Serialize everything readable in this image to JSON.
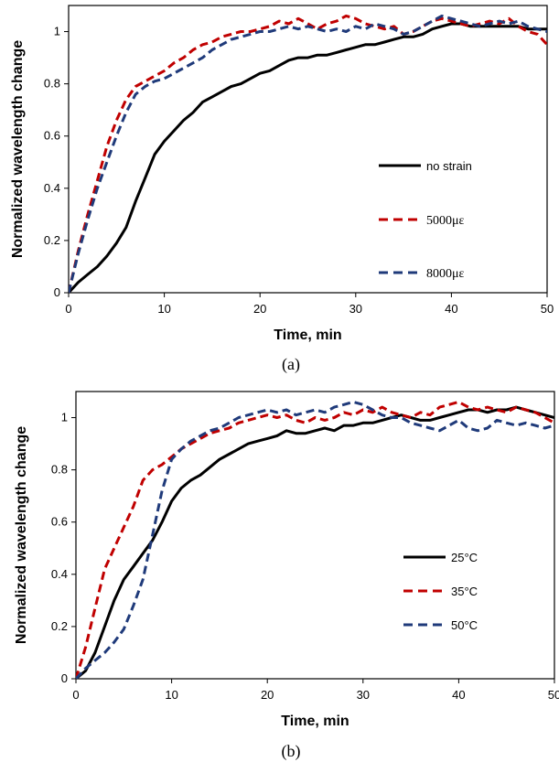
{
  "chart_data": [
    {
      "type": "line",
      "caption": "(a)",
      "xlabel": "Time, min",
      "ylabel": "Normalized wavelength change",
      "xlim": [
        0,
        50
      ],
      "ylim": [
        0,
        1.1
      ],
      "x_ticks": [
        "0",
        "10",
        "20",
        "30",
        "40",
        "50"
      ],
      "y_ticks": [
        "0",
        "0.2",
        "0.4",
        "0.6",
        "0.8",
        "1"
      ],
      "grid": false,
      "legend_position": "center-right",
      "series": [
        {
          "name": "no strain",
          "color": "#000000",
          "dash": "solid",
          "x": [
            0,
            1,
            2,
            3,
            4,
            5,
            6,
            7,
            8,
            9,
            10,
            11,
            12,
            13,
            14,
            15,
            16,
            17,
            18,
            19,
            20,
            21,
            22,
            23,
            24,
            25,
            26,
            27,
            28,
            29,
            30,
            31,
            32,
            33,
            34,
            35,
            36,
            37,
            38,
            39,
            40,
            41,
            42,
            43,
            44,
            45,
            46,
            47,
            48,
            49,
            50
          ],
          "y": [
            0,
            0.04,
            0.07,
            0.1,
            0.14,
            0.19,
            0.25,
            0.35,
            0.44,
            0.53,
            0.58,
            0.62,
            0.66,
            0.69,
            0.73,
            0.75,
            0.77,
            0.79,
            0.8,
            0.82,
            0.84,
            0.85,
            0.87,
            0.89,
            0.9,
            0.9,
            0.91,
            0.91,
            0.92,
            0.93,
            0.94,
            0.95,
            0.95,
            0.96,
            0.97,
            0.98,
            0.98,
            0.99,
            1.01,
            1.02,
            1.03,
            1.03,
            1.02,
            1.02,
            1.02,
            1.02,
            1.02,
            1.02,
            1.01,
            1.01,
            1.01
          ]
        },
        {
          "name": "5000με",
          "color": "#C00000",
          "dash": "dashed",
          "x": [
            0,
            1,
            2,
            3,
            4,
            5,
            6,
            7,
            8,
            9,
            10,
            11,
            12,
            13,
            14,
            15,
            16,
            17,
            18,
            19,
            20,
            21,
            22,
            23,
            24,
            25,
            26,
            27,
            28,
            29,
            30,
            31,
            32,
            33,
            34,
            35,
            36,
            37,
            38,
            39,
            40,
            41,
            42,
            43,
            44,
            45,
            46,
            47,
            48,
            49,
            50
          ],
          "y": [
            0,
            0.16,
            0.3,
            0.43,
            0.56,
            0.66,
            0.74,
            0.79,
            0.81,
            0.83,
            0.85,
            0.88,
            0.9,
            0.93,
            0.95,
            0.96,
            0.98,
            0.99,
            1.0,
            1.0,
            1.01,
            1.02,
            1.04,
            1.03,
            1.05,
            1.03,
            1.01,
            1.03,
            1.04,
            1.06,
            1.05,
            1.03,
            1.02,
            1.01,
            1.02,
            0.99,
            1.0,
            1.02,
            1.04,
            1.05,
            1.04,
            1.03,
            1.02,
            1.03,
            1.04,
            1.03,
            1.05,
            1.02,
            1.0,
            0.99,
            0.95
          ]
        },
        {
          "name": "8000με",
          "color": "#1F3A7A",
          "dash": "dashed",
          "x": [
            0,
            1,
            2,
            3,
            4,
            5,
            6,
            7,
            8,
            9,
            10,
            11,
            12,
            13,
            14,
            15,
            16,
            17,
            18,
            19,
            20,
            21,
            22,
            23,
            24,
            25,
            26,
            27,
            28,
            29,
            30,
            31,
            32,
            33,
            34,
            35,
            36,
            37,
            38,
            39,
            40,
            41,
            42,
            43,
            44,
            45,
            46,
            47,
            48,
            49,
            50
          ],
          "y": [
            0,
            0.15,
            0.28,
            0.4,
            0.5,
            0.6,
            0.69,
            0.76,
            0.79,
            0.81,
            0.82,
            0.84,
            0.86,
            0.88,
            0.9,
            0.93,
            0.95,
            0.97,
            0.98,
            0.99,
            1.0,
            1.0,
            1.01,
            1.02,
            1.01,
            1.02,
            1.01,
            1.0,
            1.01,
            1.0,
            1.02,
            1.01,
            1.03,
            1.02,
            1.01,
            0.99,
            1.0,
            1.02,
            1.04,
            1.06,
            1.05,
            1.04,
            1.03,
            1.02,
            1.03,
            1.04,
            1.03,
            1.04,
            1.02,
            1.01,
            1.0
          ]
        }
      ]
    },
    {
      "type": "line",
      "caption": "(b)",
      "xlabel": "Time, min",
      "ylabel": "Normalized wavelength change",
      "xlim": [
        0,
        50
      ],
      "ylim": [
        0,
        1.1
      ],
      "x_ticks": [
        "0",
        "10",
        "20",
        "30",
        "40",
        "50"
      ],
      "y_ticks": [
        "0",
        "0.2",
        "0.4",
        "0.6",
        "0.8",
        "1"
      ],
      "grid": false,
      "legend_position": "center-right",
      "series": [
        {
          "name": "25°C",
          "color": "#000000",
          "dash": "solid",
          "x": [
            0,
            1,
            2,
            3,
            4,
            5,
            6,
            7,
            8,
            9,
            10,
            11,
            12,
            13,
            14,
            15,
            16,
            17,
            18,
            19,
            20,
            21,
            22,
            23,
            24,
            25,
            26,
            27,
            28,
            29,
            30,
            31,
            32,
            33,
            34,
            35,
            36,
            37,
            38,
            39,
            40,
            41,
            42,
            43,
            44,
            45,
            46,
            47,
            48,
            49,
            50
          ],
          "y": [
            0,
            0.03,
            0.1,
            0.2,
            0.3,
            0.38,
            0.43,
            0.48,
            0.53,
            0.6,
            0.68,
            0.73,
            0.76,
            0.78,
            0.81,
            0.84,
            0.86,
            0.88,
            0.9,
            0.91,
            0.92,
            0.93,
            0.95,
            0.94,
            0.94,
            0.95,
            0.96,
            0.95,
            0.97,
            0.97,
            0.98,
            0.98,
            0.99,
            1.0,
            1.01,
            1.0,
            0.99,
            0.99,
            1.0,
            1.01,
            1.02,
            1.03,
            1.03,
            1.02,
            1.03,
            1.03,
            1.04,
            1.03,
            1.02,
            1.01,
            1.0
          ]
        },
        {
          "name": "35°C",
          "color": "#C00000",
          "dash": "dashed",
          "x": [
            0,
            1,
            2,
            3,
            4,
            5,
            6,
            7,
            8,
            9,
            10,
            11,
            12,
            13,
            14,
            15,
            16,
            17,
            18,
            19,
            20,
            21,
            22,
            23,
            24,
            25,
            26,
            27,
            28,
            29,
            30,
            31,
            32,
            33,
            34,
            35,
            36,
            37,
            38,
            39,
            40,
            41,
            42,
            43,
            44,
            45,
            46,
            47,
            48,
            49,
            50
          ],
          "y": [
            0,
            0.12,
            0.27,
            0.42,
            0.5,
            0.58,
            0.66,
            0.76,
            0.8,
            0.82,
            0.85,
            0.88,
            0.9,
            0.92,
            0.94,
            0.95,
            0.96,
            0.98,
            0.99,
            1.0,
            1.01,
            1.0,
            1.01,
            0.99,
            0.98,
            1.0,
            0.99,
            1.0,
            1.02,
            1.01,
            1.03,
            1.02,
            1.04,
            1.02,
            1.01,
            1.0,
            1.02,
            1.01,
            1.04,
            1.05,
            1.06,
            1.04,
            1.03,
            1.04,
            1.03,
            1.02,
            1.04,
            1.03,
            1.02,
            1.0,
            0.98
          ]
        },
        {
          "name": "50°C",
          "color": "#1F3A7A",
          "dash": "dashed",
          "x": [
            0,
            1,
            2,
            3,
            4,
            5,
            6,
            7,
            8,
            9,
            10,
            11,
            12,
            13,
            14,
            15,
            16,
            17,
            18,
            19,
            20,
            21,
            22,
            23,
            24,
            25,
            26,
            27,
            28,
            29,
            30,
            31,
            32,
            33,
            34,
            35,
            36,
            37,
            38,
            39,
            40,
            41,
            42,
            43,
            44,
            45,
            46,
            47,
            48,
            49,
            50
          ],
          "y": [
            0,
            0.04,
            0.07,
            0.1,
            0.14,
            0.19,
            0.28,
            0.38,
            0.55,
            0.72,
            0.84,
            0.88,
            0.91,
            0.93,
            0.95,
            0.96,
            0.98,
            1.0,
            1.01,
            1.02,
            1.03,
            1.02,
            1.03,
            1.01,
            1.02,
            1.03,
            1.02,
            1.04,
            1.05,
            1.06,
            1.05,
            1.03,
            1.01,
            1.0,
            1.0,
            0.98,
            0.97,
            0.96,
            0.95,
            0.97,
            0.99,
            0.96,
            0.95,
            0.96,
            0.99,
            0.98,
            0.97,
            0.98,
            0.97,
            0.96,
            0.97
          ]
        }
      ]
    }
  ]
}
